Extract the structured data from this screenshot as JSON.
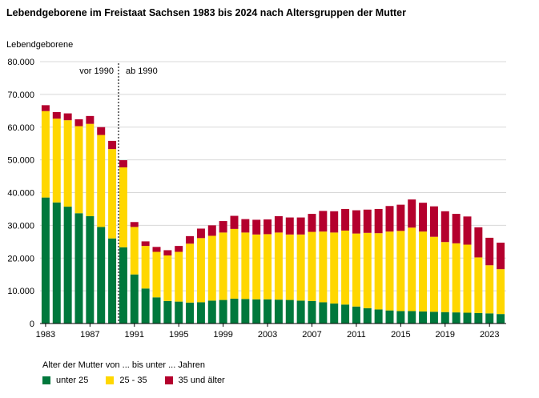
{
  "chart_data": {
    "type": "bar",
    "stacked": true,
    "title": "Lebendgeborene im Freistaat Sachsen 1983 bis 2024 nach Altersgruppen der Mutter",
    "ylabel": "Lebendgeborene",
    "ylim": [
      0,
      80000
    ],
    "yticks": [
      0,
      10000,
      20000,
      30000,
      40000,
      50000,
      60000,
      70000,
      80000
    ],
    "ytick_labels": [
      "0",
      "10.000",
      "20.000",
      "30.000",
      "40.000",
      "50.000",
      "60.000",
      "70.000",
      "80.000"
    ],
    "categories": [
      1983,
      1984,
      1985,
      1986,
      1987,
      1988,
      1989,
      1990,
      1991,
      1992,
      1993,
      1994,
      1995,
      1996,
      1997,
      1998,
      1999,
      2000,
      2001,
      2002,
      2003,
      2004,
      2005,
      2006,
      2007,
      2008,
      2009,
      2010,
      2011,
      2012,
      2013,
      2014,
      2015,
      2016,
      2017,
      2018,
      2019,
      2020,
      2021,
      2022,
      2023,
      2024
    ],
    "xtick_labels": [
      "1983",
      "1987",
      "1991",
      "1995",
      "1999",
      "2003",
      "2007",
      "2011",
      "2015",
      "2019",
      "2023"
    ],
    "series": [
      {
        "name": "unter 25",
        "color": "#00783c",
        "values": [
          38500,
          37000,
          35700,
          33700,
          32800,
          29500,
          26000,
          23300,
          15000,
          10700,
          8000,
          6900,
          6700,
          6400,
          6500,
          7000,
          7200,
          7600,
          7500,
          7400,
          7400,
          7300,
          7200,
          7000,
          6900,
          6500,
          6100,
          5800,
          5200,
          4700,
          4300,
          4000,
          3800,
          3800,
          3700,
          3600,
          3500,
          3400,
          3300,
          3200,
          3100,
          2900
        ]
      },
      {
        "name": "25 - 35",
        "color": "#ffd700",
        "values": [
          26400,
          25600,
          26400,
          26600,
          28200,
          28100,
          27300,
          24400,
          14500,
          13000,
          13900,
          13900,
          15200,
          18000,
          19600,
          19800,
          20600,
          21300,
          20300,
          19800,
          19900,
          20500,
          20000,
          20200,
          21100,
          21600,
          21700,
          22600,
          22300,
          23000,
          23300,
          24100,
          24500,
          25500,
          24400,
          22900,
          21400,
          21100,
          20800,
          17000,
          14700,
          13700
        ]
      },
      {
        "name": "35 und älter",
        "color": "#b4002d",
        "values": [
          1800,
          2000,
          2100,
          2100,
          2400,
          2400,
          2500,
          2200,
          1500,
          1400,
          1500,
          1600,
          1800,
          2300,
          2900,
          3200,
          3500,
          4000,
          4100,
          4500,
          4500,
          5000,
          5200,
          5200,
          5500,
          6300,
          6500,
          6600,
          7100,
          7100,
          7400,
          7800,
          8000,
          8600,
          8800,
          9300,
          9400,
          9000,
          8600,
          9200,
          8400,
          8100
        ]
      }
    ],
    "annotations": {
      "divider_label_left": "vor 1990",
      "divider_label_right": "ab 1990",
      "divider_after_year": 1989
    },
    "legend_title": "Alter der Mutter von ... bis unter ... Jahren",
    "legend_position": "bottom-left",
    "grid": true
  }
}
